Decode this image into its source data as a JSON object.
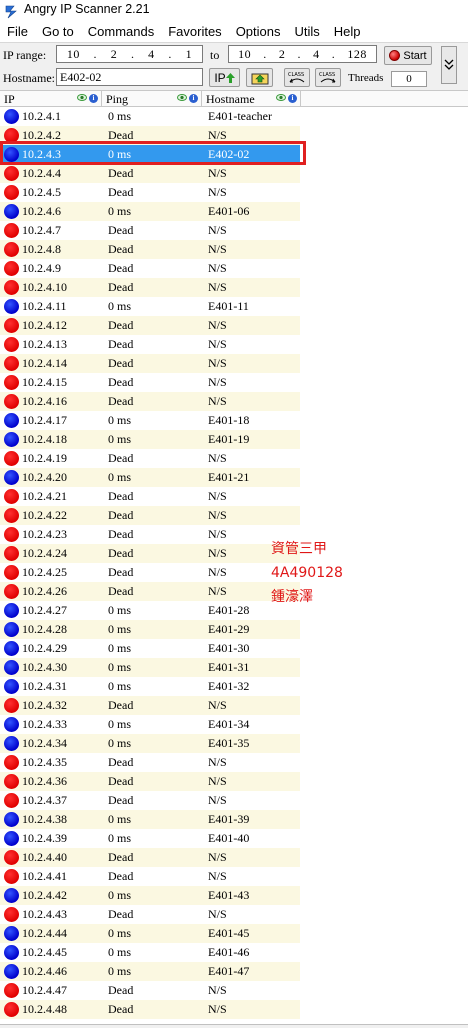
{
  "window": {
    "title": "Angry IP Scanner 2.21"
  },
  "menu": [
    {
      "label": "File"
    },
    {
      "label": "Go to"
    },
    {
      "label": "Commands"
    },
    {
      "label": "Favorites"
    },
    {
      "label": "Options"
    },
    {
      "label": "Utils"
    },
    {
      "label": "Help"
    }
  ],
  "toolbar": {
    "ip_range_label": "IP range:",
    "ip_from": [
      "10",
      "2",
      "4",
      "1"
    ],
    "to_label": "to",
    "ip_to": [
      "10",
      "2",
      "4",
      "128"
    ],
    "start_label": "Start",
    "hostname_label": "Hostname:",
    "hostname_value": "E402-02",
    "ip_button_label": "IP",
    "threads_label": "Threads",
    "threads_value": "0"
  },
  "columns": [
    {
      "label": "IP"
    },
    {
      "label": "Ping"
    },
    {
      "label": "Hostname"
    }
  ],
  "rows": [
    {
      "ip": "10.2.4.1",
      "ping": "0 ms",
      "host": "E401-teacher",
      "status": "alive"
    },
    {
      "ip": "10.2.4.2",
      "ping": "Dead",
      "host": "N/S",
      "status": "dead"
    },
    {
      "ip": "10.2.4.3",
      "ping": "0 ms",
      "host": "E402-02",
      "status": "alive"
    },
    {
      "ip": "10.2.4.4",
      "ping": "Dead",
      "host": "N/S",
      "status": "dead"
    },
    {
      "ip": "10.2.4.5",
      "ping": "Dead",
      "host": "N/S",
      "status": "dead"
    },
    {
      "ip": "10.2.4.6",
      "ping": "0 ms",
      "host": "E401-06",
      "status": "alive"
    },
    {
      "ip": "10.2.4.7",
      "ping": "Dead",
      "host": "N/S",
      "status": "dead"
    },
    {
      "ip": "10.2.4.8",
      "ping": "Dead",
      "host": "N/S",
      "status": "dead"
    },
    {
      "ip": "10.2.4.9",
      "ping": "Dead",
      "host": "N/S",
      "status": "dead"
    },
    {
      "ip": "10.2.4.10",
      "ping": "Dead",
      "host": "N/S",
      "status": "dead"
    },
    {
      "ip": "10.2.4.11",
      "ping": "0 ms",
      "host": "E401-11",
      "status": "alive"
    },
    {
      "ip": "10.2.4.12",
      "ping": "Dead",
      "host": "N/S",
      "status": "dead"
    },
    {
      "ip": "10.2.4.13",
      "ping": "Dead",
      "host": "N/S",
      "status": "dead"
    },
    {
      "ip": "10.2.4.14",
      "ping": "Dead",
      "host": "N/S",
      "status": "dead"
    },
    {
      "ip": "10.2.4.15",
      "ping": "Dead",
      "host": "N/S",
      "status": "dead"
    },
    {
      "ip": "10.2.4.16",
      "ping": "Dead",
      "host": "N/S",
      "status": "dead"
    },
    {
      "ip": "10.2.4.17",
      "ping": "0 ms",
      "host": "E401-18",
      "status": "alive"
    },
    {
      "ip": "10.2.4.18",
      "ping": "0 ms",
      "host": "E401-19",
      "status": "alive"
    },
    {
      "ip": "10.2.4.19",
      "ping": "Dead",
      "host": "N/S",
      "status": "dead"
    },
    {
      "ip": "10.2.4.20",
      "ping": "0 ms",
      "host": "E401-21",
      "status": "alive"
    },
    {
      "ip": "10.2.4.21",
      "ping": "Dead",
      "host": "N/S",
      "status": "dead"
    },
    {
      "ip": "10.2.4.22",
      "ping": "Dead",
      "host": "N/S",
      "status": "dead"
    },
    {
      "ip": "10.2.4.23",
      "ping": "Dead",
      "host": "N/S",
      "status": "dead"
    },
    {
      "ip": "10.2.4.24",
      "ping": "Dead",
      "host": "N/S",
      "status": "dead"
    },
    {
      "ip": "10.2.4.25",
      "ping": "Dead",
      "host": "N/S",
      "status": "dead"
    },
    {
      "ip": "10.2.4.26",
      "ping": "Dead",
      "host": "N/S",
      "status": "dead"
    },
    {
      "ip": "10.2.4.27",
      "ping": "0 ms",
      "host": "E401-28",
      "status": "alive"
    },
    {
      "ip": "10.2.4.28",
      "ping": "0 ms",
      "host": "E401-29",
      "status": "alive"
    },
    {
      "ip": "10.2.4.29",
      "ping": "0 ms",
      "host": "E401-30",
      "status": "alive"
    },
    {
      "ip": "10.2.4.30",
      "ping": "0 ms",
      "host": "E401-31",
      "status": "alive"
    },
    {
      "ip": "10.2.4.31",
      "ping": "0 ms",
      "host": "E401-32",
      "status": "alive"
    },
    {
      "ip": "10.2.4.32",
      "ping": "Dead",
      "host": "N/S",
      "status": "dead"
    },
    {
      "ip": "10.2.4.33",
      "ping": "0 ms",
      "host": "E401-34",
      "status": "alive"
    },
    {
      "ip": "10.2.4.34",
      "ping": "0 ms",
      "host": "E401-35",
      "status": "alive"
    },
    {
      "ip": "10.2.4.35",
      "ping": "Dead",
      "host": "N/S",
      "status": "dead"
    },
    {
      "ip": "10.2.4.36",
      "ping": "Dead",
      "host": "N/S",
      "status": "dead"
    },
    {
      "ip": "10.2.4.37",
      "ping": "Dead",
      "host": "N/S",
      "status": "dead"
    },
    {
      "ip": "10.2.4.38",
      "ping": "0 ms",
      "host": "E401-39",
      "status": "alive"
    },
    {
      "ip": "10.2.4.39",
      "ping": "0 ms",
      "host": "E401-40",
      "status": "alive"
    },
    {
      "ip": "10.2.4.40",
      "ping": "Dead",
      "host": "N/S",
      "status": "dead"
    },
    {
      "ip": "10.2.4.41",
      "ping": "Dead",
      "host": "N/S",
      "status": "dead"
    },
    {
      "ip": "10.2.4.42",
      "ping": "0 ms",
      "host": "E401-43",
      "status": "alive"
    },
    {
      "ip": "10.2.4.43",
      "ping": "Dead",
      "host": "N/S",
      "status": "dead"
    },
    {
      "ip": "10.2.4.44",
      "ping": "0 ms",
      "host": "E401-45",
      "status": "alive"
    },
    {
      "ip": "10.2.4.45",
      "ping": "0 ms",
      "host": "E401-46",
      "status": "alive"
    },
    {
      "ip": "10.2.4.46",
      "ping": "0 ms",
      "host": "E401-47",
      "status": "alive"
    },
    {
      "ip": "10.2.4.47",
      "ping": "Dead",
      "host": "N/S",
      "status": "dead"
    },
    {
      "ip": "10.2.4.48",
      "ping": "Dead",
      "host": "N/S",
      "status": "dead"
    }
  ],
  "selected_row_ip": "10.2.4.3",
  "annotation": [
    "資管三甲",
    "4A490128",
    "鍾濠澤"
  ],
  "colors": {
    "alive": "#0000cc",
    "dead": "#e00000",
    "selection": "#3399ee",
    "highlight_box": "#e02020",
    "annotation": "#e01818"
  }
}
